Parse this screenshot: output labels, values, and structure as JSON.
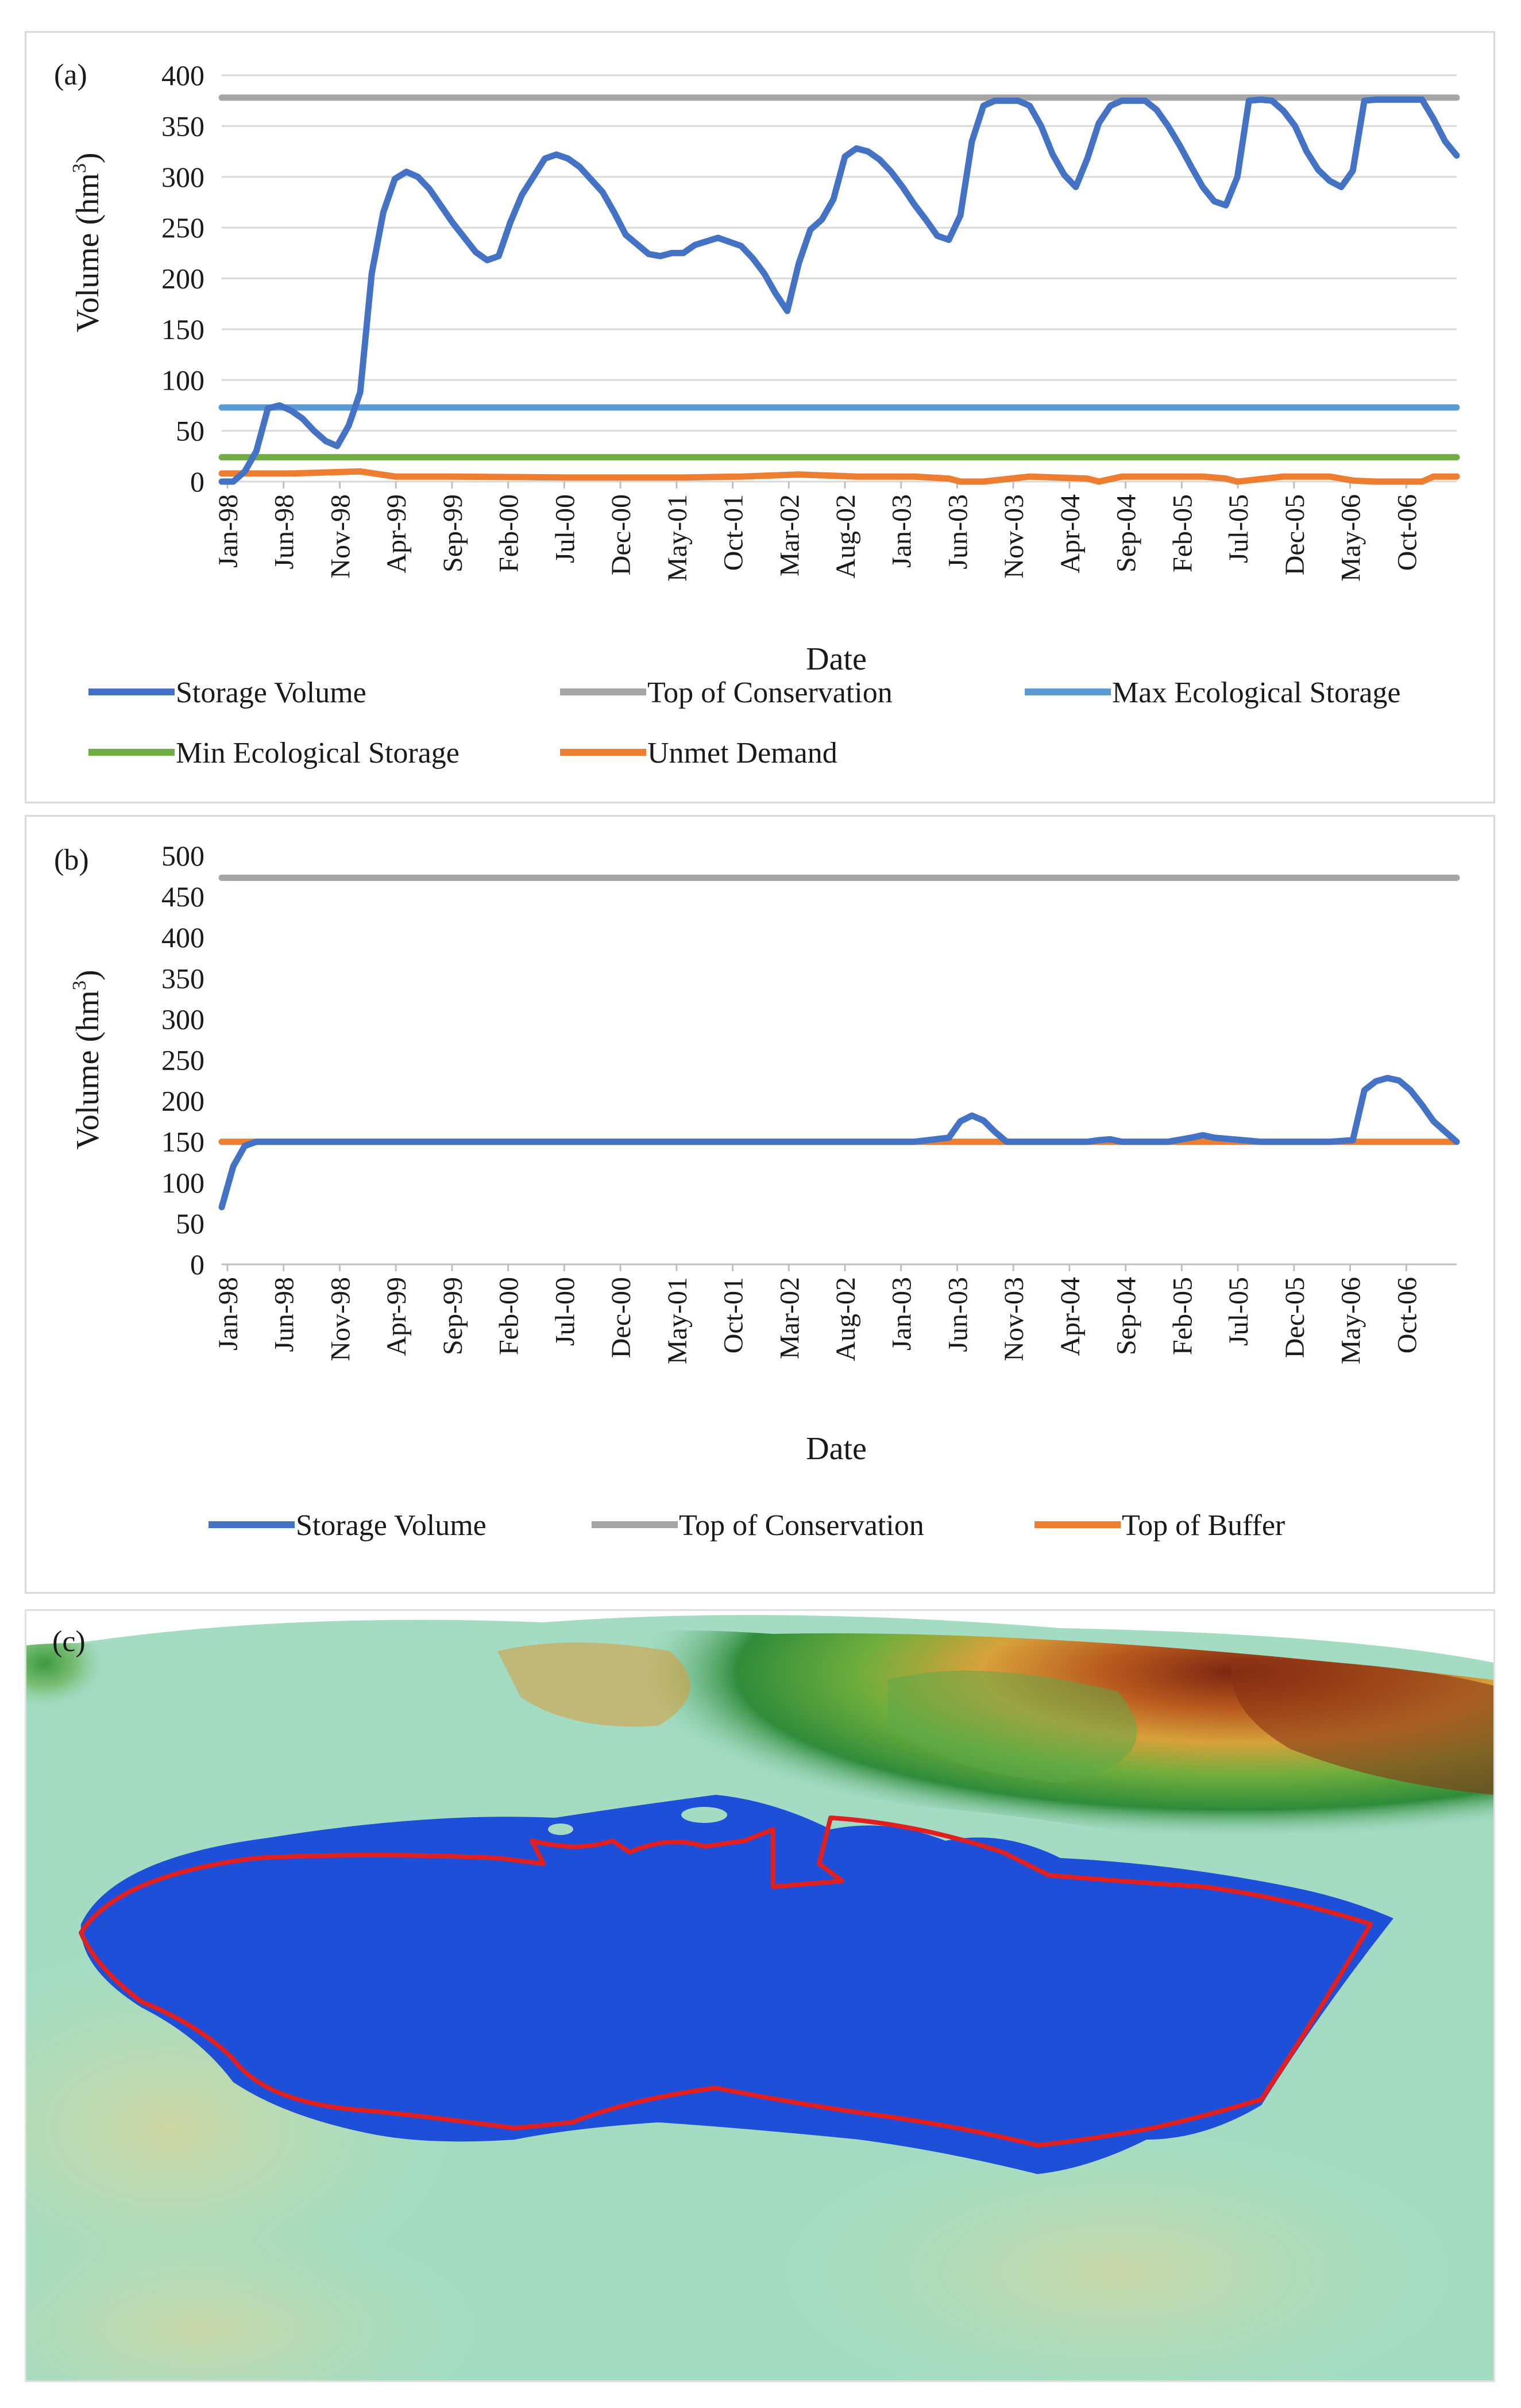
{
  "chart_data": [
    {
      "panel": "(a)",
      "type": "line",
      "xlabel": "Date",
      "ylabel_main": "Volume (hm",
      "ylabel_sup": "3",
      "ylabel_end": ")",
      "ylim": [
        0,
        400
      ],
      "yticks": [
        0,
        50,
        100,
        150,
        200,
        250,
        300,
        350,
        400
      ],
      "xtick_labels": [
        "Jan-98",
        "Jun-98",
        "Nov-98",
        "Apr-99",
        "Sep-99",
        "Feb-00",
        "Jul-00",
        "Dec-00",
        "May-01",
        "Oct-01",
        "Mar-02",
        "Aug-02",
        "Jan-03",
        "Jun-03",
        "Nov-03",
        "Apr-04",
        "Sep-04",
        "Feb-05",
        "Jul-05",
        "Dec-05",
        "May-06",
        "Oct-06"
      ],
      "grid": "horizontal",
      "legend_position": "bottom",
      "series": [
        {
          "name": "Storage Volume",
          "color": "#4472c4",
          "x": [
            0,
            1,
            2,
            3,
            4,
            5,
            6,
            7,
            8,
            9,
            10,
            11,
            12,
            13,
            14,
            15,
            16,
            17,
            18,
            20,
            22,
            23,
            24,
            25,
            26,
            28,
            29,
            30,
            31,
            33,
            34,
            35,
            37,
            38,
            39,
            40,
            41,
            43,
            45,
            46,
            47,
            48,
            49,
            50,
            51,
            52,
            53,
            54,
            55,
            56,
            57,
            58,
            59,
            60,
            61,
            62,
            63,
            64,
            65,
            66,
            67,
            68,
            69,
            70,
            71,
            72,
            73,
            74,
            75,
            76,
            77,
            78,
            79,
            80,
            81,
            82,
            83,
            84,
            85,
            86,
            87,
            88,
            89,
            90,
            91,
            92,
            93,
            94,
            95,
            96,
            97,
            98,
            99,
            100,
            101,
            102,
            103,
            104,
            105,
            106,
            107
          ],
          "y": [
            0,
            0,
            10,
            30,
            72,
            75,
            70,
            62,
            50,
            40,
            35,
            55,
            88,
            205,
            265,
            298,
            305,
            300,
            288,
            255,
            226,
            218,
            222,
            255,
            282,
            318,
            322,
            318,
            310,
            285,
            265,
            243,
            224,
            222,
            225,
            225,
            233,
            240,
            232,
            220,
            205,
            185,
            168,
            215,
            248,
            258,
            278,
            320,
            328,
            325,
            317,
            305,
            290,
            273,
            258,
            242,
            238,
            262,
            335,
            370,
            375,
            375,
            375,
            370,
            350,
            322,
            302,
            290,
            318,
            353,
            370,
            375,
            375,
            375,
            366,
            350,
            331,
            310,
            290,
            276,
            272,
            300,
            375,
            376,
            375,
            365,
            350,
            325,
            307,
            296,
            290,
            306,
            375,
            376,
            376,
            376,
            376,
            376,
            357,
            335,
            321
          ]
        },
        {
          "name": "Top of Conservation",
          "color": "#a5a5a5",
          "x": [
            0,
            107
          ],
          "y": [
            378,
            378
          ]
        },
        {
          "name": "Max Ecological Storage",
          "color": "#5b9bd5",
          "x": [
            0,
            107
          ],
          "y": [
            73,
            73
          ]
        },
        {
          "name": "Min Ecological Storage",
          "color": "#70ad47",
          "x": [
            0,
            107
          ],
          "y": [
            24,
            24
          ]
        },
        {
          "name": "Unmet Demand",
          "color": "#ed7d31",
          "x": [
            0,
            6,
            12,
            15,
            20,
            30,
            40,
            45,
            50,
            55,
            60,
            63,
            64,
            66,
            70,
            75,
            76,
            78,
            85,
            87,
            88,
            92,
            96,
            98,
            100,
            104,
            105,
            107
          ],
          "y": [
            8,
            8,
            10,
            5,
            5,
            4,
            4,
            5,
            7,
            5,
            5,
            3,
            0,
            0,
            5,
            3,
            0,
            5,
            5,
            3,
            0,
            5,
            5,
            1,
            0,
            0,
            5,
            5
          ]
        }
      ]
    },
    {
      "panel": "(b)",
      "type": "line",
      "xlabel": "Date",
      "ylabel_main": "Volume (hm",
      "ylabel_sup": "3",
      "ylabel_end": ")",
      "ylim": [
        0,
        500
      ],
      "yticks": [
        0,
        50,
        100,
        150,
        200,
        250,
        300,
        350,
        400,
        450,
        500
      ],
      "xtick_labels": [
        "Jan-98",
        "Jun-98",
        "Nov-98",
        "Apr-99",
        "Sep-99",
        "Feb-00",
        "Jul-00",
        "Dec-00",
        "May-01",
        "Oct-01",
        "Mar-02",
        "Aug-02",
        "Jan-03",
        "Jun-03",
        "Nov-03",
        "Apr-04",
        "Sep-04",
        "Feb-05",
        "Jul-05",
        "Dec-05",
        "May-06",
        "Oct-06"
      ],
      "grid": "none",
      "legend_position": "bottom",
      "series": [
        {
          "name": "Storage Volume",
          "color": "#4472c4",
          "x": [
            0,
            1,
            2,
            3,
            4,
            5,
            10,
            50,
            55,
            60,
            63,
            64,
            65,
            66,
            67,
            68,
            70,
            75,
            76,
            77,
            78,
            82,
            84,
            85,
            86,
            90,
            94,
            95,
            96,
            98,
            99,
            100,
            101,
            102,
            103,
            104,
            105,
            107
          ],
          "y": [
            70,
            120,
            145,
            150,
            150,
            150,
            150,
            150,
            150,
            150,
            155,
            175,
            182,
            176,
            162,
            150,
            150,
            150,
            152,
            153,
            150,
            150,
            155,
            158,
            155,
            150,
            150,
            150,
            150,
            152,
            213,
            224,
            228,
            225,
            213,
            195,
            175,
            150
          ]
        },
        {
          "name": "Top of Conservation",
          "color": "#a5a5a5",
          "x": [
            0,
            107
          ],
          "y": [
            473,
            473
          ]
        },
        {
          "name": "Top of Buffer",
          "color": "#ed7d31",
          "x": [
            0,
            107
          ],
          "y": [
            150,
            150
          ]
        }
      ]
    }
  ],
  "map_panel": {
    "label": "(c)",
    "colors": {
      "water": "#1e4fd8",
      "outline": "#e02020",
      "lowland": "#9fd9bf",
      "forest": "#3e9e3e",
      "highland": "#c98a2e",
      "peak": "#8a2c12"
    }
  }
}
